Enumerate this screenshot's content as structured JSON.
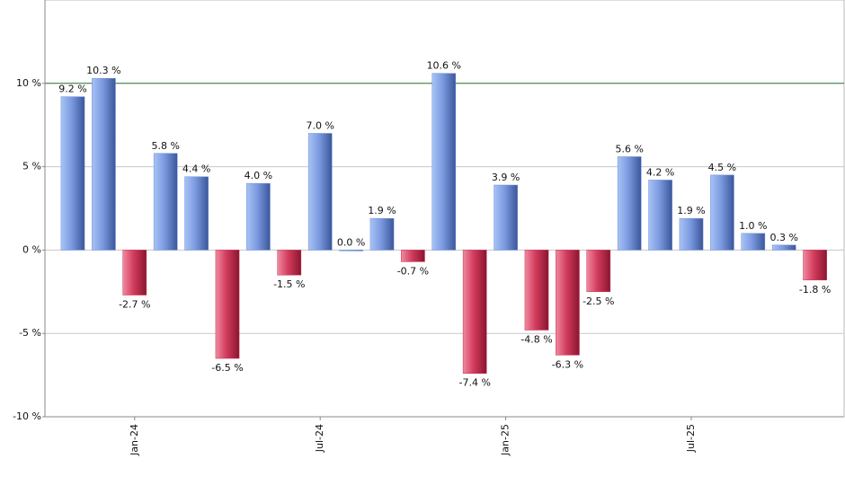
{
  "chart_data": {
    "type": "bar",
    "categories": [
      null,
      null,
      "Jan-24",
      null,
      null,
      null,
      null,
      null,
      "Jul-24",
      null,
      null,
      null,
      null,
      null,
      "Jan-25",
      null,
      null,
      null,
      null,
      null,
      "Jul-25",
      null,
      null,
      null,
      null
    ],
    "values": [
      9.2,
      10.3,
      -2.7,
      5.8,
      4.4,
      -6.5,
      4.0,
      -1.5,
      7.0,
      0.0,
      1.9,
      -0.7,
      10.6,
      -7.4,
      3.9,
      -4.8,
      -6.3,
      -2.5,
      5.6,
      4.2,
      1.9,
      4.5,
      1.0,
      0.3,
      -1.8
    ],
    "value_labels": [
      "9.2 %",
      "10.3 %",
      "-2.7 %",
      "5.8 %",
      "4.4 %",
      "-6.5 %",
      "4.0 %",
      "-1.5 %",
      "7.0 %",
      "0.0 %",
      "1.9 %",
      "-0.7 %",
      "10.6 %",
      "-7.4 %",
      "3.9 %",
      "-4.8 %",
      "-6.3 %",
      "-2.5 %",
      "5.6 %",
      "4.2 %",
      "1.9 %",
      "4.5 %",
      "1.0 %",
      "0.3 %",
      "-1.8 %"
    ],
    "positive_color": "#6f8fd8",
    "negative_color": "#c8304f",
    "ylim": [
      -10,
      15
    ],
    "yticks": [
      {
        "value": -10,
        "label": "-10 %"
      },
      {
        "value": -5,
        "label": "-5 %"
      },
      {
        "value": 0,
        "label": "0 %"
      },
      {
        "value": 5,
        "label": "5 %"
      },
      {
        "value": 10,
        "label": "10 %"
      }
    ],
    "target_line": {
      "value": 10,
      "color": "#2e7d32"
    },
    "grid": true
  }
}
